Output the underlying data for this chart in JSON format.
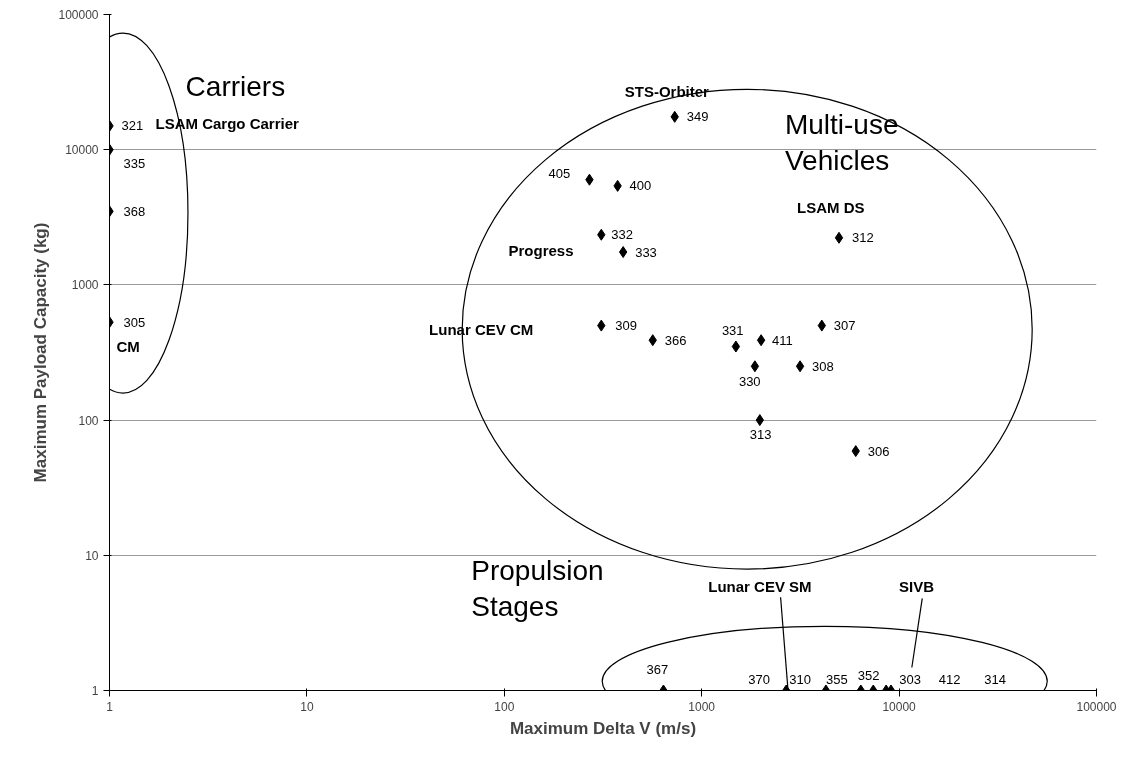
{
  "chart_data": {
    "type": "scatter",
    "xlabel": "Maximum Delta V (m/s)",
    "ylabel": "Maximum Payload Capacity (kg)",
    "log": "xy",
    "grid": "y",
    "marker": "diamond",
    "xlim": [
      1,
      100000
    ],
    "ylim": [
      1,
      100000
    ],
    "xticks": [
      1,
      10,
      100,
      1000,
      10000,
      100000
    ],
    "yticks": [
      1,
      10,
      100,
      1000,
      10000,
      100000
    ],
    "series": [
      {
        "color": "#000000",
        "x": [
          1,
          1,
          1,
          1,
          730,
          270,
          375,
          310,
          400,
          4960,
          310,
          565,
          1490,
          2000,
          4060,
          1860,
          3150,
          1970,
          6030,
          640,
          2680,
          4260,
          6400,
          7400,
          8600,
          9100
        ],
        "values": [
          15000,
          10000,
          3500,
          530,
          17500,
          6000,
          5400,
          2350,
          1750,
          2230,
          500,
          390,
          350,
          390,
          500,
          250,
          250,
          100,
          59,
          1,
          1,
          1,
          1,
          1,
          1,
          1
        ]
      }
    ],
    "annotations": [
      "Carriers",
      "Multi-use\nVehicles",
      "Propulsion\nStages",
      "LSAM Cargo Carrier",
      {
        "text": "CM",
        "x": 1,
        "y": 530
      },
      {
        "text": "STS-Orbiter",
        "x": 730,
        "y": 17500
      },
      {
        "text": "LSAM DS",
        "x": 4960,
        "y": 2230
      },
      "Progress",
      "Lunar CEV CM",
      {
        "text": "Lunar CEV SM",
        "x": 2680,
        "y": 1
      },
      "SIVB",
      {
        "text": "321",
        "x": 1,
        "y": 15000
      },
      {
        "text": "335",
        "x": 1,
        "y": 10000
      },
      {
        "text": "368",
        "x": 1,
        "y": 3500
      },
      {
        "text": "305",
        "x": 1,
        "y": 530
      },
      {
        "text": "349",
        "x": 730,
        "y": 17500
      },
      {
        "text": "405",
        "x": 270,
        "y": 6000
      },
      {
        "text": "400",
        "x": 375,
        "y": 5400
      },
      {
        "text": "332",
        "x": 310,
        "y": 2350
      },
      {
        "text": "333",
        "x": 400,
        "y": 1750
      },
      {
        "text": "312",
        "x": 4960,
        "y": 2230
      },
      {
        "text": "309",
        "x": 310,
        "y": 500
      },
      {
        "text": "366",
        "x": 565,
        "y": 390
      },
      {
        "text": "331",
        "x": 1490,
        "y": 350
      },
      {
        "text": "411",
        "x": 2000,
        "y": 390
      },
      {
        "text": "307",
        "x": 4060,
        "y": 500
      },
      {
        "text": "308",
        "x": 3150,
        "y": 250
      },
      {
        "text": "330",
        "x": 1860,
        "y": 250
      },
      {
        "text": "313",
        "x": 1970,
        "y": 100
      },
      {
        "text": "306",
        "x": 6030,
        "y": 59
      },
      {
        "text": "367",
        "x": 640,
        "y": 1
      },
      {
        "text": "370",
        "x": 2680,
        "y": 1
      },
      {
        "text": "310",
        "x": 2680,
        "y": 1
      },
      {
        "text": "355",
        "x": 4260,
        "y": 1
      },
      {
        "text": "352",
        "x": 6400,
        "y": 1
      },
      {
        "text": "303",
        "x": 7400,
        "y": 1
      },
      "412",
      "314"
    ]
  }
}
